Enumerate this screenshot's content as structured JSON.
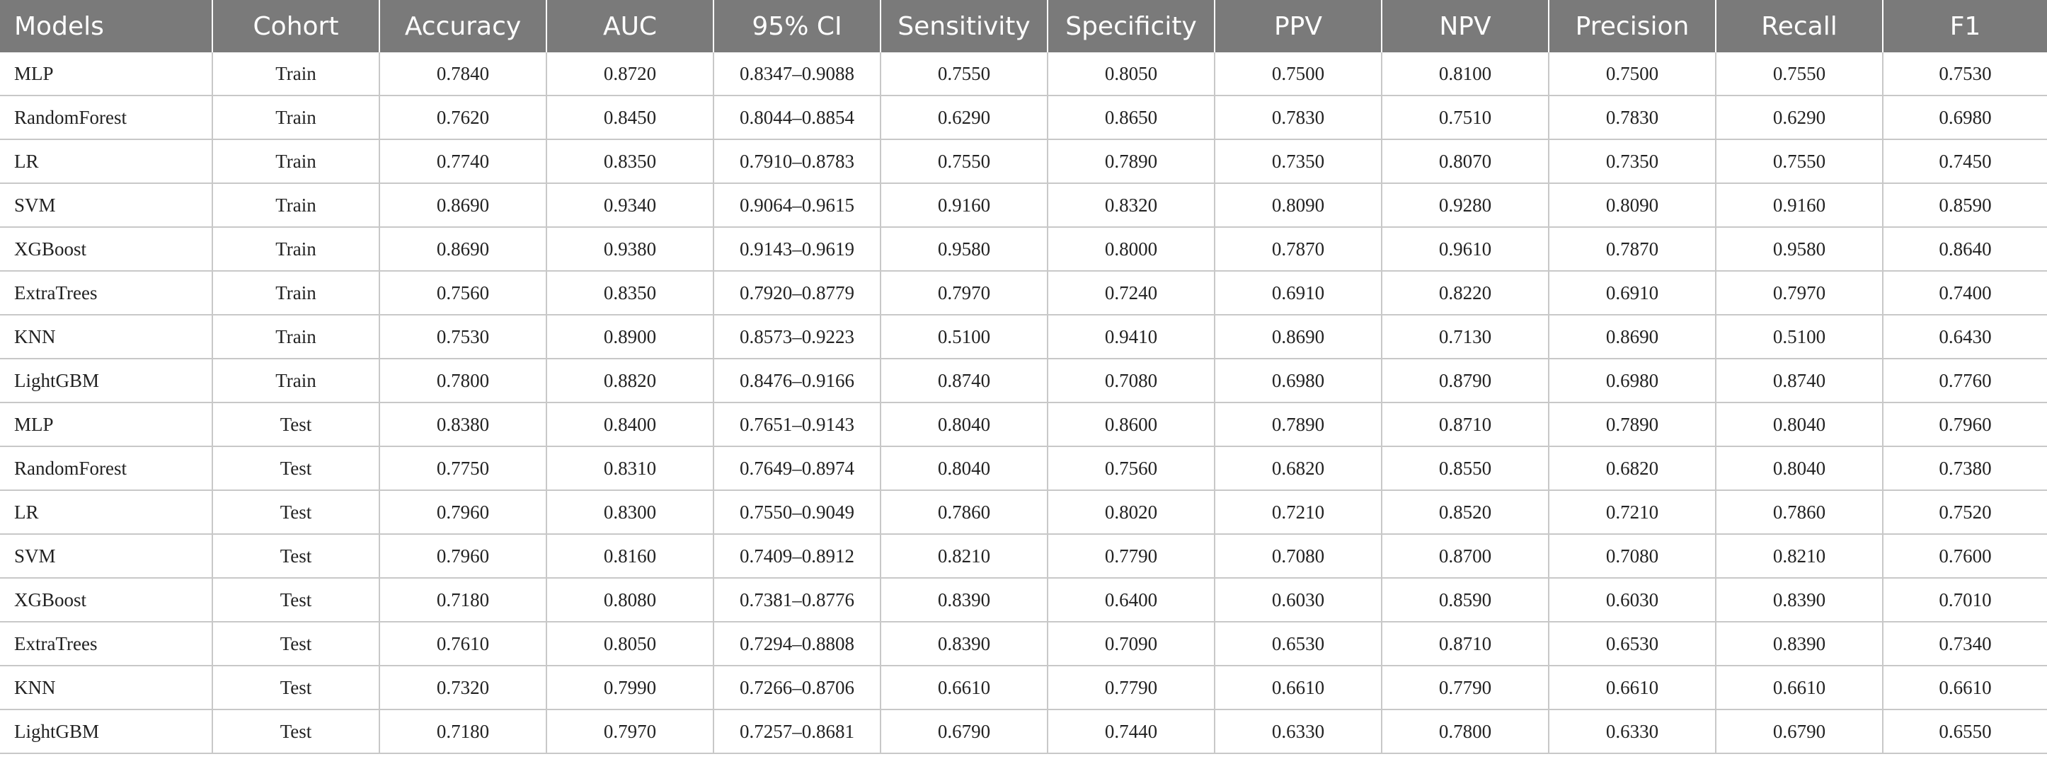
{
  "table": {
    "headers": [
      "Models",
      "Cohort",
      "Accuracy",
      "AUC",
      "95% CI",
      "Sensitivity",
      "Specificity",
      "PPV",
      "NPV",
      "Precision",
      "Recall",
      "F1"
    ],
    "rows": [
      [
        "MLP",
        "Train",
        "0.7840",
        "0.8720",
        "0.8347–0.9088",
        "0.7550",
        "0.8050",
        "0.7500",
        "0.8100",
        "0.7500",
        "0.7550",
        "0.7530"
      ],
      [
        "RandomForest",
        "Train",
        "0.7620",
        "0.8450",
        "0.8044–0.8854",
        "0.6290",
        "0.8650",
        "0.7830",
        "0.7510",
        "0.7830",
        "0.6290",
        "0.6980"
      ],
      [
        "LR",
        "Train",
        "0.7740",
        "0.8350",
        "0.7910–0.8783",
        "0.7550",
        "0.7890",
        "0.7350",
        "0.8070",
        "0.7350",
        "0.7550",
        "0.7450"
      ],
      [
        "SVM",
        "Train",
        "0.8690",
        "0.9340",
        "0.9064–0.9615",
        "0.9160",
        "0.8320",
        "0.8090",
        "0.9280",
        "0.8090",
        "0.9160",
        "0.8590"
      ],
      [
        "XGBoost",
        "Train",
        "0.8690",
        "0.9380",
        "0.9143–0.9619",
        "0.9580",
        "0.8000",
        "0.7870",
        "0.9610",
        "0.7870",
        "0.9580",
        "0.8640"
      ],
      [
        "ExtraTrees",
        "Train",
        "0.7560",
        "0.8350",
        "0.7920–0.8779",
        "0.7970",
        "0.7240",
        "0.6910",
        "0.8220",
        "0.6910",
        "0.7970",
        "0.7400"
      ],
      [
        "KNN",
        "Train",
        "0.7530",
        "0.8900",
        "0.8573–0.9223",
        "0.5100",
        "0.9410",
        "0.8690",
        "0.7130",
        "0.8690",
        "0.5100",
        "0.6430"
      ],
      [
        "LightGBM",
        "Train",
        "0.7800",
        "0.8820",
        "0.8476–0.9166",
        "0.8740",
        "0.7080",
        "0.6980",
        "0.8790",
        "0.6980",
        "0.8740",
        "0.7760"
      ],
      [
        "MLP",
        "Test",
        "0.8380",
        "0.8400",
        "0.7651–0.9143",
        "0.8040",
        "0.8600",
        "0.7890",
        "0.8710",
        "0.7890",
        "0.8040",
        "0.7960"
      ],
      [
        "RandomForest",
        "Test",
        "0.7750",
        "0.8310",
        "0.7649–0.8974",
        "0.8040",
        "0.7560",
        "0.6820",
        "0.8550",
        "0.6820",
        "0.8040",
        "0.7380"
      ],
      [
        "LR",
        "Test",
        "0.7960",
        "0.8300",
        "0.7550–0.9049",
        "0.7860",
        "0.8020",
        "0.7210",
        "0.8520",
        "0.7210",
        "0.7860",
        "0.7520"
      ],
      [
        "SVM",
        "Test",
        "0.7960",
        "0.8160",
        "0.7409–0.8912",
        "0.8210",
        "0.7790",
        "0.7080",
        "0.8700",
        "0.7080",
        "0.8210",
        "0.7600"
      ],
      [
        "XGBoost",
        "Test",
        "0.7180",
        "0.8080",
        "0.7381–0.8776",
        "0.8390",
        "0.6400",
        "0.6030",
        "0.8590",
        "0.6030",
        "0.8390",
        "0.7010"
      ],
      [
        "ExtraTrees",
        "Test",
        "0.7610",
        "0.8050",
        "0.7294–0.8808",
        "0.8390",
        "0.7090",
        "0.6530",
        "0.8710",
        "0.6530",
        "0.8390",
        "0.7340"
      ],
      [
        "KNN",
        "Test",
        "0.7320",
        "0.7990",
        "0.7266–0.8706",
        "0.6610",
        "0.7790",
        "0.6610",
        "0.7790",
        "0.6610",
        "0.6610",
        "0.6610"
      ],
      [
        "LightGBM",
        "Test",
        "0.7180",
        "0.7970",
        "0.7257–0.8681",
        "0.6790",
        "0.7440",
        "0.6330",
        "0.7800",
        "0.6330",
        "0.6790",
        "0.6550"
      ]
    ]
  }
}
